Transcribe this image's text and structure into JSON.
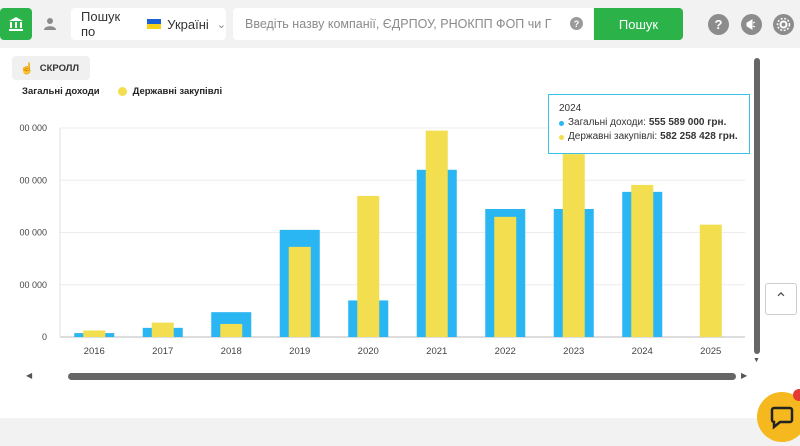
{
  "header": {
    "search_mode_label": "Пошук по",
    "region": "Україні",
    "search_placeholder": "Введіть назву компанії, ЄДРПОУ, РНОКПП ФОП чи Г",
    "search_button": "Пошук"
  },
  "chart_toolbar": {
    "scroll_label": "СКРОЛЛ"
  },
  "colors": {
    "income": "#29b6f2",
    "procurement": "#f2de4e",
    "accent": "#2bb34a",
    "tooltip_border": "#38c0e8"
  },
  "tooltip": {
    "year": "2024",
    "income_label": "Загальні доходи:",
    "income_value": "555 589 000 грн.",
    "procurement_label": "Державні закупівлі:",
    "procurement_value": "582 258 428 грн."
  },
  "chart_data": {
    "type": "bar",
    "categories": [
      "2016",
      "2017",
      "2018",
      "2019",
      "2020",
      "2021",
      "2022",
      "2023",
      "2024",
      "2025"
    ],
    "series": [
      {
        "name": "Загальні доходи",
        "values": [
          15000000,
          35000000,
          95000000,
          410000000,
          140000000,
          640000000,
          490000000,
          490000000,
          555589000,
          0
        ]
      },
      {
        "name": "Державні закупівлі",
        "values": [
          25000000,
          55000000,
          50000000,
          345000000,
          540000000,
          790000000,
          460000000,
          700000000,
          582258428,
          430000000
        ]
      }
    ],
    "y_tick_labels": [
      "0",
      "00 000",
      "00 000",
      "00 000",
      "00 000"
    ],
    "y_ticks": [
      0,
      200000000,
      400000000,
      600000000,
      800000000
    ],
    "ylim": [
      0,
      800000000
    ],
    "legend_position": "top-left",
    "grid": true
  }
}
